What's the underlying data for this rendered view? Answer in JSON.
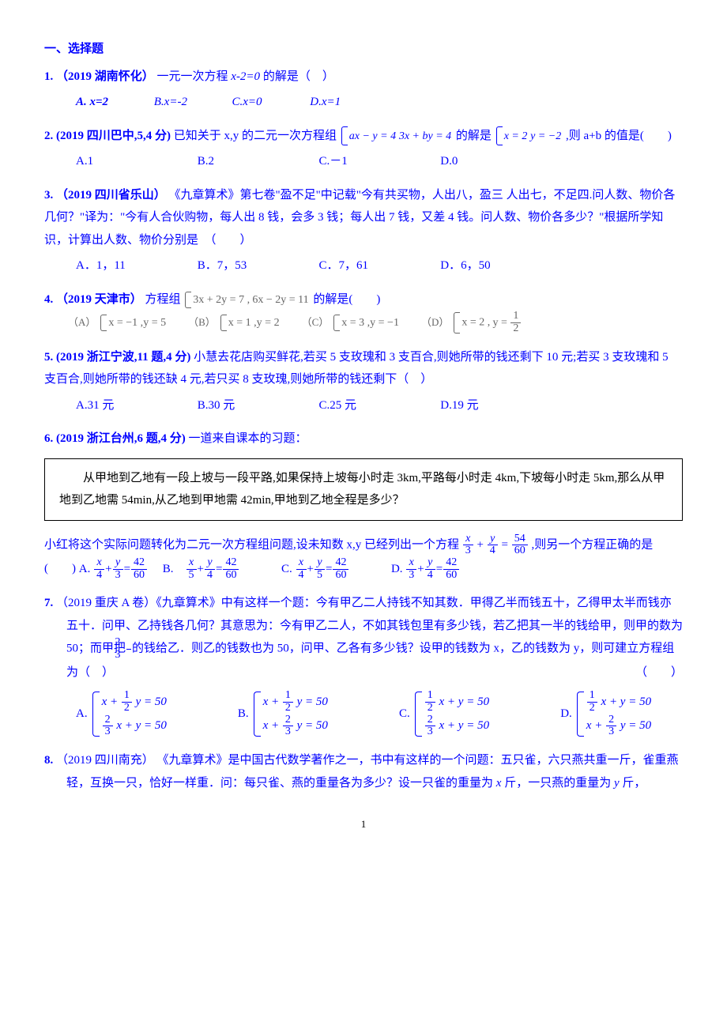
{
  "page": {
    "number": "1"
  },
  "section": {
    "title": "一、选择题"
  },
  "q1": {
    "label": "1.",
    "src": "（2019 湖南怀化）",
    "stem_a": "一元一次方程 ",
    "eqn": "x-2=0",
    "stem_b": " 的解是（　）",
    "opts": {
      "a": "A.  x=2",
      "b": "B.x=-2",
      "c": "C.x=0",
      "d": "D.x=1"
    }
  },
  "q2": {
    "label": "2. (2019 四川巴中,5,4 分)",
    "stem_a": " 已知关于 x,y 的二元一次方程组",
    "sys1": {
      "r1": "ax − y = 4",
      "r2": "3x + by = 4"
    },
    "stem_b": "的解是",
    "sys2": {
      "r1": "x = 2",
      "r2": "y = −2"
    },
    "stem_c": ",则 a+b 的值是(　　)",
    "opts": {
      "a": "A.1",
      "b": "B.2",
      "c": "C.－1",
      "d": "D.0"
    }
  },
  "q3": {
    "label": "3.",
    "src": "（2019 四川省乐山）",
    "stem": "《九章算术》第七卷\"盈不足\"中记载\"今有共买物，人出八，盈三 人出七，不足四.问人数、物价各几何？\"译为：\"今有人合伙购物，每人出 8 钱，会多 3 钱；每人出 7 钱，又差 4 钱。问人数、物价各多少？\"根据所学知识，计算出人数、物价分别是　（　　）",
    "opts": {
      "a": "A．1，11",
      "b": "B．7，53",
      "c": "C．7，61",
      "d": "D．6，50"
    }
  },
  "q4": {
    "label": "4.",
    "src": "（2019 天津市）",
    "stem_a": "方程组",
    "sys": {
      "r1": "3x + 2y = 7 ,",
      "r2": "6x − 2y = 11"
    },
    "stem_b": "的解是(　　)",
    "opts": {
      "a_lab": "（A）",
      "a1": "x = −1 ,",
      "a2": "y = 5",
      "b_lab": "（B）",
      "b1": "x = 1 ,",
      "b2": "y = 2",
      "c_lab": "（C）",
      "c1": "x = 3 ,",
      "c2": "y = −1",
      "d_lab": "（D）",
      "d1": "x = 2 ,",
      "d2_top": "1",
      "d2_bot": "2",
      "d2_pre": "y ="
    }
  },
  "q5": {
    "label": "5. (2019 浙江宁波,11 题,4 分)",
    "stem": "小慧去花店购买鲜花,若买 5 支玫瑰和 3 支百合,则她所带的钱还剩下 10 元;若买 3 支玫瑰和 5 支百合,则她所带的钱还缺 4 元,若只买 8 支玫瑰,则她所带的钱还剩下（　）",
    "opts": {
      "a": "A.31 元",
      "b": "B.30 元",
      "c": "C.25 元",
      "d": "D.19 元"
    }
  },
  "q6": {
    "label": "6. (2019 浙江台州,6 题,4 分)",
    "stem_a": "一道来自课本的习题：",
    "box": "　　从甲地到乙地有一段上坡与一段平路,如果保持上坡每小时走 3km,平路每小时走 4km,下坡每小时走 5km,那么从甲地到乙地需 54min,从乙地到甲地需 42min,甲地到乙地全程是多少？",
    "after_a": "小红将这个实际问题转化为二元一次方程组问题,设未知数 x,y 已经列出一个方程",
    "given": {
      "l": {
        "n": "x",
        "d": "3"
      },
      "r": {
        "n": "y",
        "d": "4"
      },
      "rhs": {
        "n": "54",
        "d": "60"
      }
    },
    "after_b": ",则另一个方程正确的是",
    "tail": "(　　)",
    "opts": {
      "a": {
        "lab": "A.",
        "l": {
          "n": "x",
          "d": "4"
        },
        "r": {
          "n": "y",
          "d": "3"
        },
        "rhs": {
          "n": "42",
          "d": "60"
        }
      },
      "b": {
        "lab": "B.",
        "l": {
          "n": "x",
          "d": "5"
        },
        "r": {
          "n": "y",
          "d": "4"
        },
        "rhs": {
          "n": "42",
          "d": "60"
        }
      },
      "c": {
        "lab": "C.",
        "l": {
          "n": "x",
          "d": "4"
        },
        "r": {
          "n": "y",
          "d": "5"
        },
        "rhs": {
          "n": "42",
          "d": "60"
        }
      },
      "d": {
        "lab": "D.",
        "l": {
          "n": "x",
          "d": "3"
        },
        "r": {
          "n": "y",
          "d": "4"
        },
        "rhs": {
          "n": "42",
          "d": "60"
        }
      }
    }
  },
  "q7": {
    "label": "7.",
    "src": "（2019 重庆 A 卷）",
    "stem_a": "《九章算术》中有这样一个题：今有甲乙二人持钱不知其数．甲得乙半而钱五十，乙得甲太半而钱亦五十．问甲、乙持钱各几何？其意思为：今有甲乙二人，不如其钱包里有多少钱，若乙把其一半的钱给甲，则甲的数为 50；而甲把",
    "frac_2_3": {
      "n": "2",
      "d": "3"
    },
    "stem_b": "的钱给乙．则乙的钱数也为 50，问甲、乙各有多少钱？设甲的钱数为 x，乙的钱数为 y，则可建立方程组为（　）",
    "blank_paren": "（　　）",
    "opts": {
      "a": {
        "lab": "A.",
        "r1_pre": "x +",
        "r1_frac": {
          "n": "1",
          "d": "2"
        },
        "r1_post": " y = 50",
        "r2_frac": {
          "n": "2",
          "d": "3"
        },
        "r2": " x + y = 50"
      },
      "b": {
        "lab": "B.",
        "r1_pre": "x +",
        "r1_frac": {
          "n": "1",
          "d": "2"
        },
        "r1_post": " y = 50",
        "r2_pre": "x +",
        "r2_frac": {
          "n": "2",
          "d": "3"
        },
        "r2_post": " y = 50"
      },
      "c": {
        "lab": "C.",
        "r1_frac": {
          "n": "1",
          "d": "2"
        },
        "r1": " x + y = 50",
        "r2_frac": {
          "n": "2",
          "d": "3"
        },
        "r2": " x + y = 50"
      },
      "d": {
        "lab": "D.",
        "r1_frac": {
          "n": "1",
          "d": "2"
        },
        "r1": " x + y = 50",
        "r2_pre": "x +",
        "r2_frac": {
          "n": "2",
          "d": "3"
        },
        "r2_post": " y = 50"
      }
    }
  },
  "q8": {
    "label": "8.",
    "src": "（2019 四川南充）",
    "stem_a": "《九章算术》是中国古代数学著作之一，书中有这样的一个问题：五只雀，六只燕共重一斤，雀重燕轻，互换一只，恰好一样重．问：每只雀、燕的重量各为多少？设一只雀的重量为 ",
    "var_x": "x",
    "mid": " 斤，一只燕的重量为 ",
    "var_y": "y",
    "stem_b": " 斤，"
  }
}
